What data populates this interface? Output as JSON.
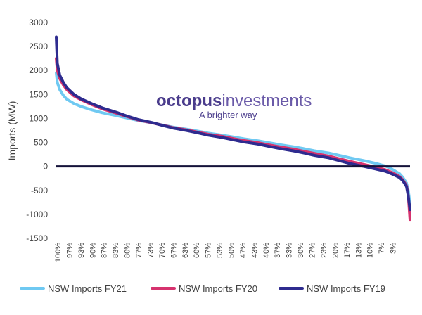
{
  "brand": {
    "name_bold": "octopus",
    "name_light": "investments",
    "tagline": "A brighter way"
  },
  "chart_data": {
    "type": "line",
    "title": "",
    "xlabel": "",
    "ylabel": "Imports (MW)",
    "ylim": [
      -1500,
      3000
    ],
    "yticks": [
      -1500,
      -1000,
      -500,
      0,
      500,
      1000,
      1500,
      2000,
      2500,
      3000
    ],
    "xlim": [
      100,
      0
    ],
    "x_reversed": true,
    "xtick_labels": [
      "100%",
      "97%",
      "93%",
      "90%",
      "87%",
      "83%",
      "80%",
      "77%",
      "73%",
      "70%",
      "67%",
      "63%",
      "60%",
      "57%",
      "53%",
      "50%",
      "47%",
      "43%",
      "40%",
      "37%",
      "33%",
      "30%",
      "27%",
      "23%",
      "20%",
      "17%",
      "13%",
      "10%",
      "7%",
      "3%"
    ],
    "zero_line": true,
    "grid": false,
    "legend_position": "bottom",
    "series": [
      {
        "name": "NSW Imports FY21",
        "color": "#6fc9f2",
        "x": [
          100,
          99.7,
          99,
          98,
          97,
          95,
          93,
          90,
          87,
          83,
          80,
          77,
          73,
          70,
          67,
          63,
          60,
          57,
          53,
          50,
          47,
          43,
          40,
          37,
          33,
          30,
          27,
          23,
          20,
          17,
          13,
          10,
          7,
          5,
          3,
          2,
          1,
          0.5,
          0
        ],
        "values": [
          1950,
          1750,
          1600,
          1480,
          1400,
          1310,
          1250,
          1180,
          1120,
          1060,
          1010,
          960,
          910,
          865,
          820,
          775,
          735,
          695,
          650,
          615,
          575,
          535,
          495,
          455,
          410,
          370,
          325,
          280,
          230,
          180,
          120,
          70,
          10,
          -60,
          -150,
          -230,
          -350,
          -500,
          -780
        ]
      },
      {
        "name": "NSW Imports FY20",
        "color": "#d6326e",
        "x": [
          100,
          99.7,
          99,
          98,
          97,
          95,
          93,
          90,
          87,
          83,
          80,
          77,
          73,
          70,
          67,
          63,
          60,
          57,
          53,
          50,
          47,
          43,
          40,
          37,
          33,
          30,
          27,
          23,
          20,
          17,
          13,
          10,
          7,
          5,
          3,
          2,
          1,
          0.5,
          0
        ],
        "values": [
          2250,
          2000,
          1830,
          1700,
          1600,
          1470,
          1390,
          1290,
          1200,
          1110,
          1040,
          970,
          910,
          860,
          810,
          760,
          715,
          670,
          625,
          580,
          540,
          495,
          450,
          410,
          360,
          315,
          270,
          215,
          160,
          105,
          40,
          -10,
          -70,
          -130,
          -210,
          -280,
          -400,
          -600,
          -1120
        ]
      },
      {
        "name": "NSW Imports FY19",
        "color": "#2e2b8f",
        "x": [
          100,
          99.7,
          99,
          98,
          97,
          95,
          93,
          90,
          87,
          83,
          80,
          77,
          73,
          70,
          67,
          63,
          60,
          57,
          53,
          50,
          47,
          43,
          40,
          37,
          33,
          30,
          27,
          23,
          20,
          17,
          13,
          10,
          7,
          5,
          3,
          2,
          1,
          0.5,
          0
        ],
        "values": [
          2700,
          2150,
          1900,
          1750,
          1640,
          1500,
          1410,
          1310,
          1220,
          1130,
          1050,
          980,
          915,
          855,
          800,
          745,
          700,
          650,
          600,
          555,
          510,
          465,
          420,
          375,
          325,
          280,
          230,
          180,
          120,
          60,
          0,
          -50,
          -100,
          -160,
          -230,
          -300,
          -420,
          -620,
          -900
        ]
      }
    ]
  }
}
